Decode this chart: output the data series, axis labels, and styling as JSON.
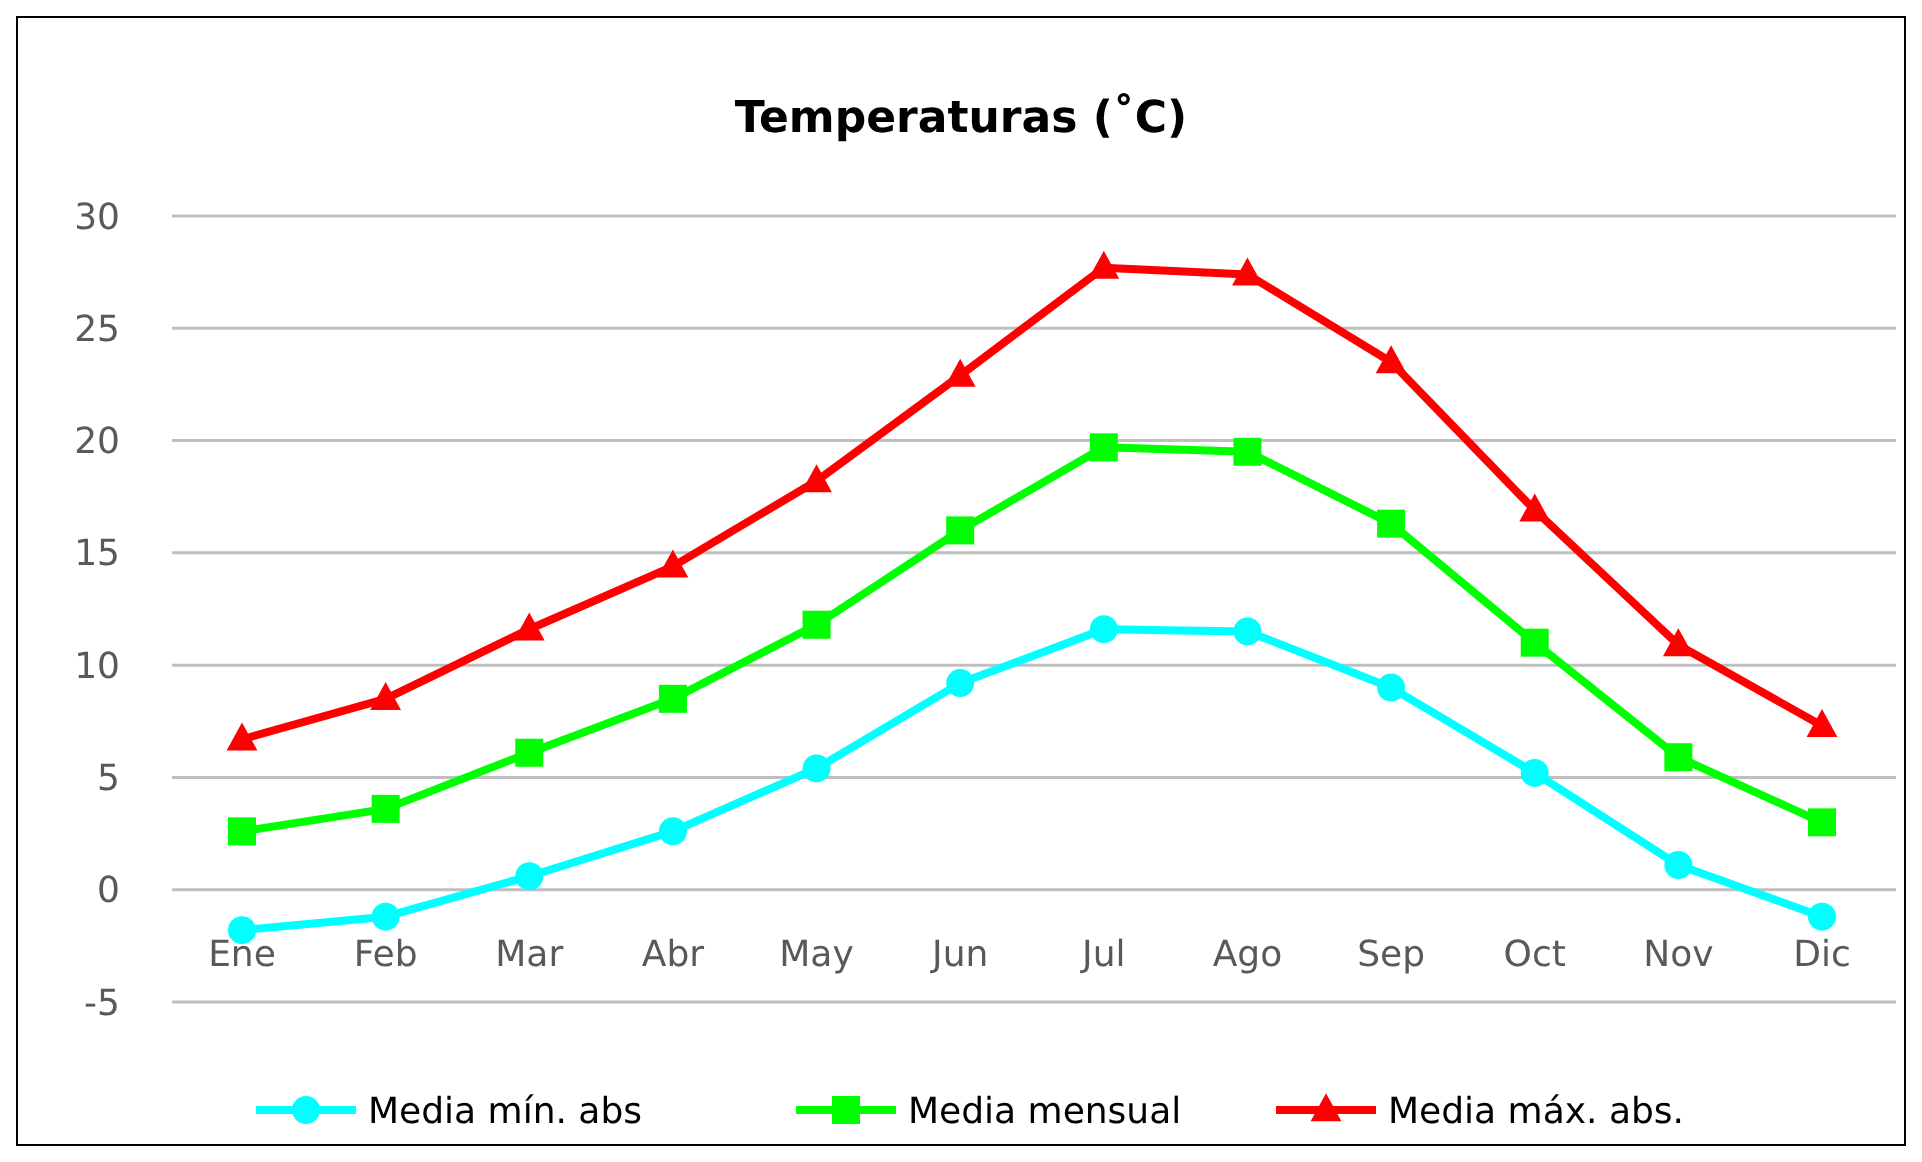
{
  "chart_data": {
    "type": "line",
    "title": "Temperaturas (˚C)",
    "categories": [
      "Ene",
      "Feb",
      "Mar",
      "Abr",
      "May",
      "Jun",
      "Jul",
      "Ago",
      "Sep",
      "Oct",
      "Nov",
      "Dic"
    ],
    "series": [
      {
        "name": "Media mín. abs",
        "color": "#00ffff",
        "marker": "circle",
        "values": [
          -1.8,
          -1.2,
          0.6,
          2.6,
          5.4,
          9.2,
          11.6,
          11.5,
          9.0,
          5.2,
          1.1,
          -1.2
        ]
      },
      {
        "name": "Media mensual",
        "color": "#00ff00",
        "marker": "square",
        "values": [
          2.6,
          3.6,
          6.1,
          8.5,
          11.8,
          16.0,
          19.7,
          19.5,
          16.3,
          11.0,
          5.9,
          3.0
        ]
      },
      {
        "name": "Media máx. abs.",
        "color": "#ff0000",
        "marker": "triangle",
        "values": [
          6.7,
          8.5,
          11.6,
          14.4,
          18.2,
          22.9,
          27.7,
          27.4,
          23.5,
          16.9,
          10.9,
          7.3
        ]
      }
    ],
    "ylim": [
      -5,
      30
    ],
    "yticks": [
      -5,
      0,
      5,
      10,
      15,
      20,
      25,
      30
    ],
    "grid": "y",
    "legend": "bottom",
    "line_style": "solid"
  }
}
